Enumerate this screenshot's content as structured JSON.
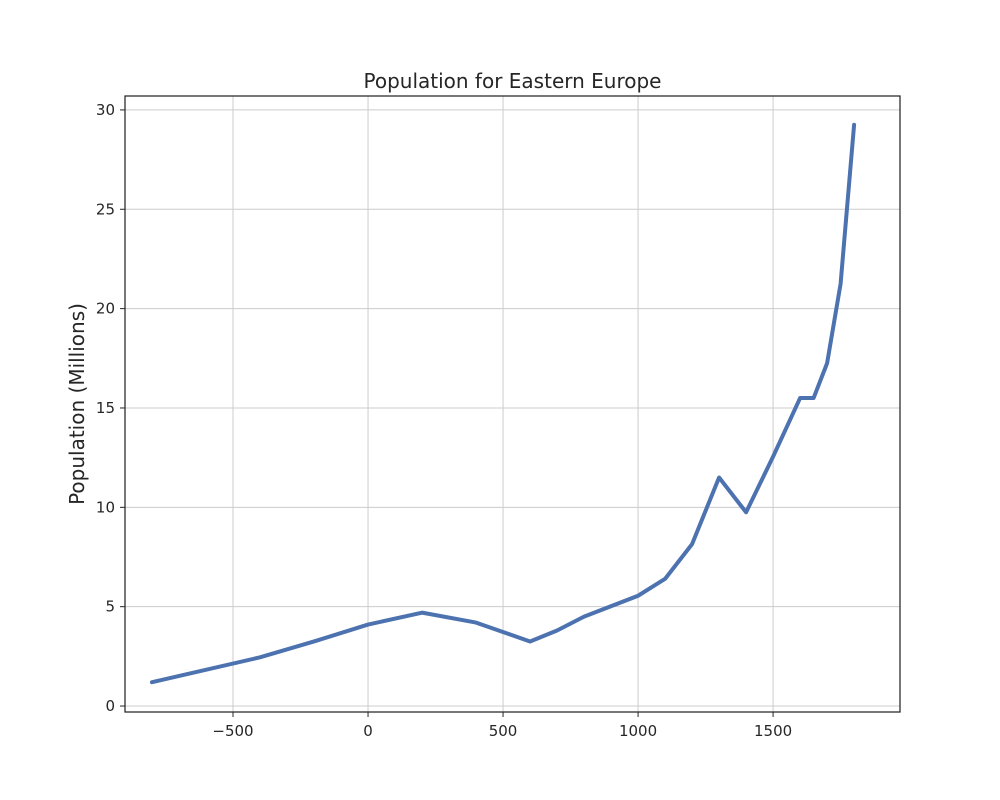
{
  "chart_data": {
    "type": "line",
    "title": "Population for Eastern Europe",
    "xlabel": "",
    "ylabel": "Population (Millions)",
    "xlim": [
      -900,
      1970
    ],
    "ylim": [
      -0.3,
      30.7
    ],
    "x_ticks": [
      -500,
      0,
      500,
      1000,
      1500
    ],
    "x_tick_labels": [
      "−500",
      "0",
      "500",
      "1000",
      "1500"
    ],
    "y_ticks": [
      0,
      5,
      10,
      15,
      20,
      25,
      30
    ],
    "y_tick_labels": [
      "0",
      "5",
      "10",
      "15",
      "20",
      "25",
      "30"
    ],
    "grid": true,
    "series": [
      {
        "color": "#4c72b0",
        "x": [
          -800,
          -400,
          -200,
          0,
          200,
          400,
          600,
          700,
          800,
          1000,
          1100,
          1200,
          1300,
          1400,
          1500,
          1600,
          1650,
          1700,
          1750,
          1800
        ],
        "y": [
          1.2,
          2.45,
          3.25,
          4.1,
          4.7,
          4.2,
          3.25,
          3.8,
          4.5,
          5.55,
          6.4,
          8.15,
          11.5,
          9.75,
          12.55,
          15.5,
          15.5,
          17.25,
          21.25,
          29.25
        ]
      }
    ]
  }
}
